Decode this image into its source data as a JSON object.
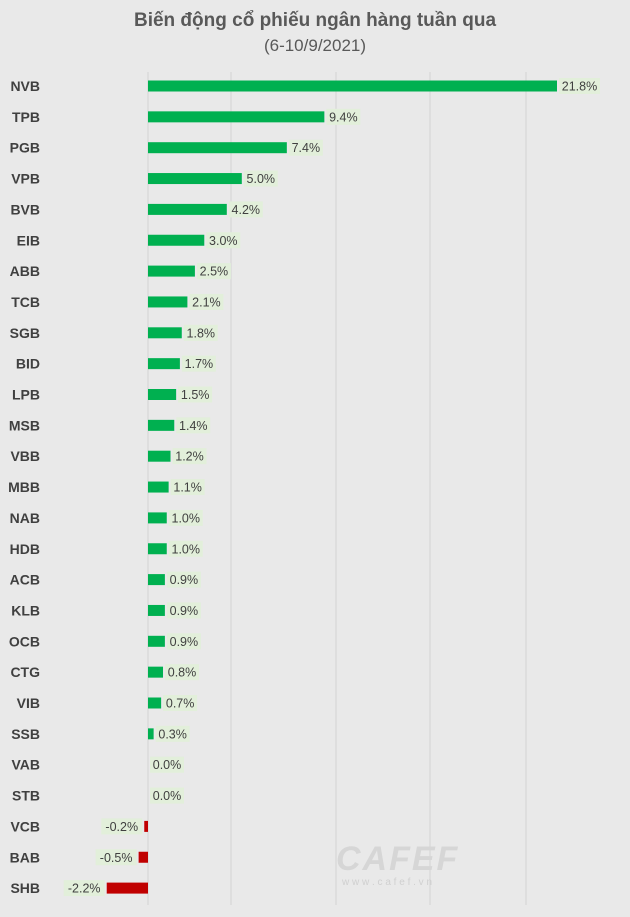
{
  "chart_data": {
    "type": "bar",
    "orientation": "horizontal",
    "title": "Biến động cổ phiếu ngân hàng tuần qua",
    "subtitle": "(6-10/9/2021)",
    "categories": [
      "NVB",
      "TPB",
      "PGB",
      "VPB",
      "BVB",
      "EIB",
      "ABB",
      "TCB",
      "SGB",
      "BID",
      "LPB",
      "MSB",
      "VBB",
      "MBB",
      "NAB",
      "HDB",
      "ACB",
      "KLB",
      "OCB",
      "CTG",
      "VIB",
      "SSB",
      "VAB",
      "STB",
      "VCB",
      "BAB",
      "SHB"
    ],
    "values": [
      21.8,
      9.4,
      7.4,
      5.0,
      4.2,
      3.0,
      2.5,
      2.1,
      1.8,
      1.7,
      1.5,
      1.4,
      1.2,
      1.1,
      1.0,
      1.0,
      0.9,
      0.9,
      0.9,
      0.8,
      0.7,
      0.3,
      0.0,
      0.0,
      -0.2,
      -0.5,
      -2.2
    ],
    "data_labels": [
      "21.8%",
      "9.4%",
      "7.4%",
      "5.0%",
      "4.2%",
      "3.0%",
      "2.5%",
      "2.1%",
      "1.8%",
      "1.7%",
      "1.5%",
      "1.4%",
      "1.2%",
      "1.1%",
      "1.0%",
      "1.0%",
      "0.9%",
      "0.9%",
      "0.9%",
      "0.8%",
      "0.7%",
      "0.3%",
      "0.0%",
      "0.0%",
      "-0.2%",
      "-0.5%",
      "-2.2%"
    ],
    "xlim": [
      -2.2,
      22
    ],
    "grid": true,
    "colors": {
      "positive": "#00b050",
      "negative": "#c00000",
      "label_bg": "#e2efda",
      "background": "#e9e9e9",
      "grid": "#d4d4d4",
      "text": "#404040"
    }
  },
  "watermark": {
    "text": "CAFEF",
    "subtext": "w w w . c a f e f . v n"
  }
}
